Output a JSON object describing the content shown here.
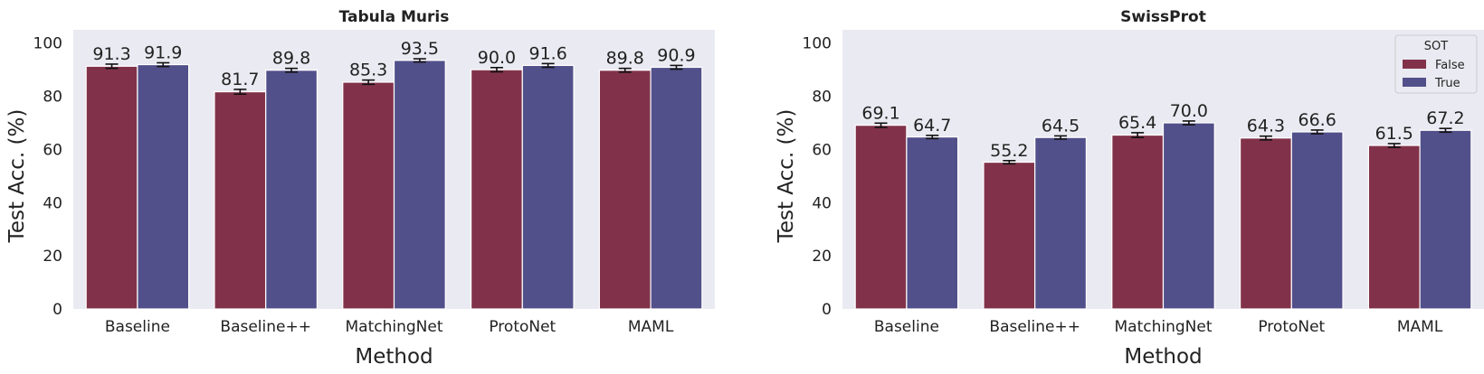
{
  "chart_data": [
    {
      "type": "bar",
      "title": "Tabula Muris",
      "xlabel": "Method",
      "ylabel": "Test Acc. (%)",
      "ylim": [
        0,
        105
      ],
      "yticks": [
        0,
        20,
        40,
        60,
        80,
        100
      ],
      "grid": false,
      "categories": [
        "Baseline",
        "Baseline++",
        "MatchingNet",
        "ProtoNet",
        "MAML"
      ],
      "series": [
        {
          "name": "False",
          "color": "#81324a",
          "values": [
            91.3,
            81.7,
            85.3,
            90.0,
            89.8
          ],
          "errors": [
            0.8,
            0.9,
            0.8,
            0.8,
            0.7
          ]
        },
        {
          "name": "True",
          "color": "#52508a",
          "values": [
            91.9,
            89.8,
            93.5,
            91.6,
            90.9
          ],
          "errors": [
            0.7,
            0.7,
            0.6,
            0.7,
            0.7
          ]
        }
      ],
      "data_labels": [
        [
          "91.3",
          "81.7",
          "85.3",
          "90.0",
          "89.8"
        ],
        [
          "91.9",
          "89.8",
          "93.5",
          "91.6",
          "90.9"
        ]
      ],
      "legend": null
    },
    {
      "type": "bar",
      "title": "SwissProt",
      "xlabel": "Method",
      "ylabel": "Test Acc. (%)",
      "ylim": [
        0,
        105
      ],
      "yticks": [
        0,
        20,
        40,
        60,
        80,
        100
      ],
      "grid": false,
      "categories": [
        "Baseline",
        "Baseline++",
        "MatchingNet",
        "ProtoNet",
        "MAML"
      ],
      "series": [
        {
          "name": "False",
          "color": "#81324a",
          "values": [
            69.1,
            55.2,
            65.4,
            64.3,
            61.5
          ],
          "errors": [
            0.8,
            0.6,
            0.9,
            0.7,
            0.7
          ]
        },
        {
          "name": "True",
          "color": "#52508a",
          "values": [
            64.7,
            64.5,
            70.0,
            66.6,
            67.2
          ],
          "errors": [
            0.6,
            0.6,
            0.7,
            0.7,
            0.7
          ]
        }
      ],
      "data_labels": [
        [
          "69.1",
          "55.2",
          "65.4",
          "64.3",
          "61.5"
        ],
        [
          "64.7",
          "64.5",
          "70.0",
          "66.6",
          "67.2"
        ]
      ],
      "legend": {
        "title": "SOT",
        "placement": "top-right",
        "entries": [
          "False",
          "True"
        ]
      }
    }
  ],
  "style": {
    "plot_background": "#eaeaf2",
    "bar_edge": "#ffffff",
    "text": "#222222"
  }
}
